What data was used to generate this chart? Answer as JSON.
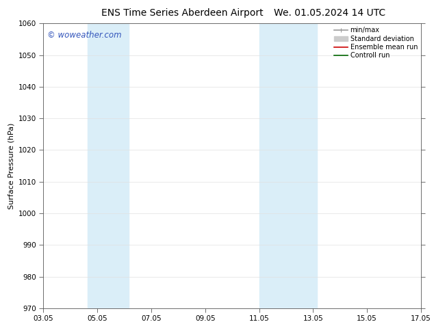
{
  "title_left": "ENS Time Series Aberdeen Airport",
  "title_right": "We. 01.05.2024 14 UTC",
  "ylabel": "Surface Pressure (hPa)",
  "ylim": [
    970,
    1060
  ],
  "yticks": [
    970,
    980,
    990,
    1000,
    1010,
    1020,
    1030,
    1040,
    1050,
    1060
  ],
  "xtick_labels": [
    "03.05",
    "05.05",
    "07.05",
    "09.05",
    "11.05",
    "13.05",
    "15.05",
    "17.05"
  ],
  "xtick_positions": [
    0,
    2,
    4,
    6,
    8,
    10,
    12,
    14
  ],
  "xlim": [
    0,
    14
  ],
  "shaded_bands": [
    {
      "x_start": 1.65,
      "x_end": 3.15,
      "color": "#daeef8"
    },
    {
      "x_start": 8.0,
      "x_end": 10.15,
      "color": "#daeef8"
    }
  ],
  "watermark_text": "© woweather.com",
  "watermark_color": "#3355bb",
  "legend_items": [
    {
      "label": "min/max",
      "color": "#999999",
      "lw": 1.2
    },
    {
      "label": "Standard deviation",
      "color": "#cccccc",
      "lw": 5
    },
    {
      "label": "Ensemble mean run",
      "color": "#cc0000",
      "lw": 1.2
    },
    {
      "label": "Controll run",
      "color": "#006600",
      "lw": 1.2
    }
  ],
  "background_color": "#ffffff",
  "grid_color": "#e0e0e0",
  "title_fontsize": 10,
  "ylabel_fontsize": 8,
  "tick_fontsize": 7.5,
  "legend_fontsize": 7,
  "watermark_fontsize": 8.5
}
